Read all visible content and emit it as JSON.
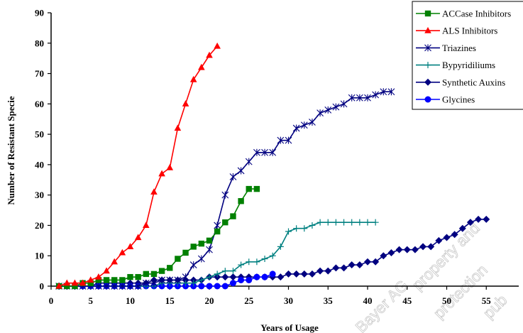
{
  "chart_data": {
    "type": "line",
    "title": "",
    "xlabel": "Years of Usage",
    "ylabel": "Number of Resistant Specie",
    "xlim": [
      0,
      60
    ],
    "ylim": [
      0,
      90
    ],
    "xticks": [
      0,
      5,
      10,
      15,
      20,
      25,
      30,
      35,
      40,
      45,
      50,
      55
    ],
    "yticks": [
      0,
      10,
      20,
      30,
      40,
      50,
      60,
      70,
      80,
      90
    ],
    "grid": false,
    "legend_position": "top-right",
    "series": [
      {
        "name": "ACCase Inhibitors",
        "color": "#008000",
        "marker": "square",
        "points": [
          [
            1,
            0
          ],
          [
            2,
            0
          ],
          [
            3,
            0
          ],
          [
            4,
            1
          ],
          [
            5,
            1
          ],
          [
            6,
            2
          ],
          [
            7,
            2
          ],
          [
            8,
            2
          ],
          [
            9,
            2
          ],
          [
            10,
            3
          ],
          [
            11,
            3
          ],
          [
            12,
            4
          ],
          [
            13,
            4
          ],
          [
            14,
            5
          ],
          [
            15,
            6
          ],
          [
            16,
            9
          ],
          [
            17,
            11
          ],
          [
            18,
            13
          ],
          [
            19,
            14
          ],
          [
            20,
            15
          ],
          [
            21,
            18
          ],
          [
            22,
            21
          ],
          [
            23,
            23
          ],
          [
            24,
            28
          ],
          [
            25,
            32
          ],
          [
            26,
            32
          ]
        ]
      },
      {
        "name": "ALS Inhibitors",
        "color": "#ff0000",
        "marker": "triangle",
        "points": [
          [
            1,
            0
          ],
          [
            2,
            1
          ],
          [
            3,
            1
          ],
          [
            4,
            1
          ],
          [
            5,
            2
          ],
          [
            6,
            3
          ],
          [
            7,
            5
          ],
          [
            8,
            8
          ],
          [
            9,
            11
          ],
          [
            10,
            13
          ],
          [
            11,
            16
          ],
          [
            12,
            20
          ],
          [
            13,
            31
          ],
          [
            14,
            37
          ],
          [
            15,
            39
          ],
          [
            16,
            52
          ],
          [
            17,
            60
          ],
          [
            18,
            68
          ],
          [
            19,
            72
          ],
          [
            20,
            76
          ],
          [
            21,
            79
          ]
        ]
      },
      {
        "name": "Triazines",
        "color": "#000080",
        "marker": "star",
        "points": [
          [
            1,
            0
          ],
          [
            2,
            0
          ],
          [
            3,
            0
          ],
          [
            4,
            0
          ],
          [
            5,
            0
          ],
          [
            6,
            0
          ],
          [
            7,
            0
          ],
          [
            8,
            0
          ],
          [
            9,
            0
          ],
          [
            10,
            0
          ],
          [
            11,
            0
          ],
          [
            12,
            1
          ],
          [
            13,
            1
          ],
          [
            14,
            2
          ],
          [
            15,
            2
          ],
          [
            16,
            2
          ],
          [
            17,
            3
          ],
          [
            18,
            7
          ],
          [
            19,
            9
          ],
          [
            20,
            12
          ],
          [
            21,
            20
          ],
          [
            22,
            30
          ],
          [
            23,
            36
          ],
          [
            24,
            38
          ],
          [
            25,
            41
          ],
          [
            26,
            44
          ],
          [
            27,
            44
          ],
          [
            28,
            44
          ],
          [
            29,
            48
          ],
          [
            30,
            48
          ],
          [
            31,
            52
          ],
          [
            32,
            53
          ],
          [
            33,
            54
          ],
          [
            34,
            57
          ],
          [
            35,
            58
          ],
          [
            36,
            59
          ],
          [
            37,
            60
          ],
          [
            38,
            62
          ],
          [
            39,
            62
          ],
          [
            40,
            62
          ],
          [
            41,
            63
          ],
          [
            42,
            64
          ],
          [
            43,
            64
          ]
        ]
      },
      {
        "name": "Bypyridiliums",
        "color": "#008080",
        "marker": "plus",
        "points": [
          [
            1,
            0
          ],
          [
            2,
            0
          ],
          [
            3,
            0
          ],
          [
            4,
            0
          ],
          [
            5,
            0
          ],
          [
            6,
            0
          ],
          [
            7,
            0
          ],
          [
            8,
            0
          ],
          [
            9,
            0
          ],
          [
            10,
            0
          ],
          [
            11,
            0
          ],
          [
            12,
            0
          ],
          [
            13,
            0
          ],
          [
            14,
            1
          ],
          [
            15,
            1
          ],
          [
            16,
            1
          ],
          [
            17,
            1
          ],
          [
            18,
            1
          ],
          [
            19,
            2
          ],
          [
            20,
            3
          ],
          [
            21,
            4
          ],
          [
            22,
            5
          ],
          [
            23,
            5
          ],
          [
            24,
            7
          ],
          [
            25,
            8
          ],
          [
            26,
            8
          ],
          [
            27,
            9
          ],
          [
            28,
            10
          ],
          [
            29,
            13
          ],
          [
            30,
            18
          ],
          [
            31,
            19
          ],
          [
            32,
            19
          ],
          [
            33,
            20
          ],
          [
            34,
            21
          ],
          [
            35,
            21
          ],
          [
            36,
            21
          ],
          [
            37,
            21
          ],
          [
            38,
            21
          ],
          [
            39,
            21
          ],
          [
            40,
            21
          ],
          [
            41,
            21
          ]
        ]
      },
      {
        "name": "Synthetic Auxins",
        "color": "#000080",
        "marker": "diamond",
        "points": [
          [
            1,
            0
          ],
          [
            2,
            0
          ],
          [
            3,
            0
          ],
          [
            4,
            0
          ],
          [
            5,
            0
          ],
          [
            6,
            1
          ],
          [
            7,
            1
          ],
          [
            8,
            1
          ],
          [
            9,
            1
          ],
          [
            10,
            1
          ],
          [
            11,
            1
          ],
          [
            12,
            1
          ],
          [
            13,
            2
          ],
          [
            14,
            2
          ],
          [
            15,
            2
          ],
          [
            16,
            2
          ],
          [
            17,
            2
          ],
          [
            18,
            2
          ],
          [
            19,
            2
          ],
          [
            20,
            3
          ],
          [
            21,
            3
          ],
          [
            22,
            3
          ],
          [
            23,
            3
          ],
          [
            24,
            3
          ],
          [
            25,
            3
          ],
          [
            26,
            3
          ],
          [
            27,
            3
          ],
          [
            28,
            3
          ],
          [
            29,
            3
          ],
          [
            30,
            4
          ],
          [
            31,
            4
          ],
          [
            32,
            4
          ],
          [
            33,
            4
          ],
          [
            34,
            5
          ],
          [
            35,
            5
          ],
          [
            36,
            6
          ],
          [
            37,
            6
          ],
          [
            38,
            7
          ],
          [
            39,
            7
          ],
          [
            40,
            8
          ],
          [
            41,
            8
          ],
          [
            42,
            10
          ],
          [
            43,
            11
          ],
          [
            44,
            12
          ],
          [
            45,
            12
          ],
          [
            46,
            12
          ],
          [
            47,
            13
          ],
          [
            48,
            13
          ],
          [
            49,
            15
          ],
          [
            50,
            16
          ],
          [
            51,
            17
          ],
          [
            52,
            19
          ],
          [
            53,
            21
          ],
          [
            54,
            22
          ],
          [
            55,
            22
          ]
        ]
      },
      {
        "name": "Glycines",
        "color": "#0000ff",
        "marker": "circle",
        "points": [
          [
            1,
            0
          ],
          [
            2,
            0
          ],
          [
            3,
            0
          ],
          [
            4,
            0
          ],
          [
            5,
            0
          ],
          [
            6,
            0
          ],
          [
            7,
            0
          ],
          [
            8,
            0
          ],
          [
            9,
            0
          ],
          [
            10,
            0
          ],
          [
            11,
            0
          ],
          [
            12,
            0
          ],
          [
            13,
            0
          ],
          [
            14,
            0
          ],
          [
            15,
            0
          ],
          [
            16,
            0
          ],
          [
            17,
            0
          ],
          [
            18,
            0
          ],
          [
            19,
            0
          ],
          [
            20,
            0
          ],
          [
            21,
            0
          ],
          [
            22,
            0
          ],
          [
            23,
            1
          ],
          [
            24,
            2
          ],
          [
            25,
            2
          ],
          [
            26,
            3
          ],
          [
            27,
            3
          ],
          [
            28,
            4
          ]
        ]
      }
    ]
  },
  "watermark": {
    "lines": [
      "Bayer AG",
      "property and",
      "protection",
      "pub"
    ]
  }
}
